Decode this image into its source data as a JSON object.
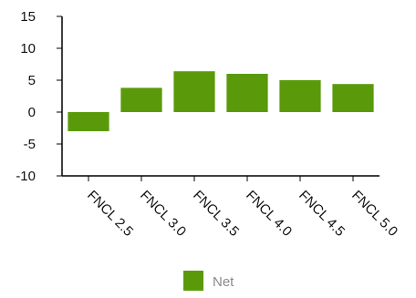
{
  "chart_data": {
    "type": "bar",
    "title": "",
    "xlabel": "",
    "ylabel": "",
    "categories": [
      "FNCL 2.5",
      "FNCL 3.0",
      "FNCL 3.5",
      "FNCL 4.0",
      "FNCL 4.5",
      "FNCL 5.0"
    ],
    "series": [
      {
        "name": "Net",
        "color": "#5a9a0a",
        "values": [
          -3.0,
          3.8,
          6.4,
          6.0,
          5.0,
          4.4
        ]
      }
    ],
    "ylim": [
      -10,
      15
    ],
    "yticks": [
      15,
      10,
      5,
      0,
      -5,
      -10
    ],
    "grid": false,
    "legend_position": "bottom-center"
  }
}
